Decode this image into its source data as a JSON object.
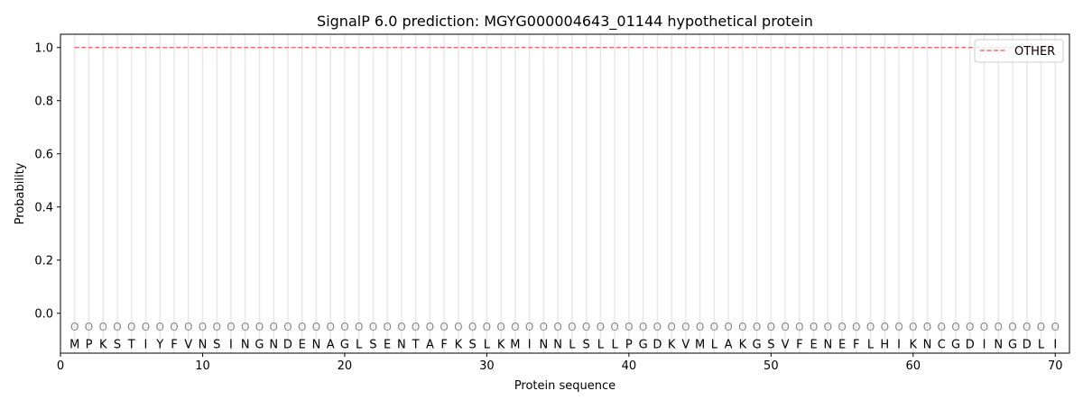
{
  "chart_data": {
    "type": "line",
    "title": "SignalP 6.0 prediction: MGYG000004643_01144 hypothetical protein",
    "xlabel": "Protein sequence",
    "ylabel": "Probability",
    "xlim": [
      0,
      71
    ],
    "ylim": [
      -0.15,
      1.05
    ],
    "xticks": [
      0,
      10,
      20,
      30,
      40,
      50,
      60,
      70
    ],
    "yticks": [
      0.0,
      0.2,
      0.4,
      0.6,
      0.8,
      1.0
    ],
    "ytick_labels": [
      "0.0",
      "0.2",
      "0.4",
      "0.6",
      "0.8",
      "1.0"
    ],
    "grid": "vertical lines at each residue",
    "legend_position": "top-right",
    "sequence": [
      "M",
      "P",
      "K",
      "S",
      "T",
      "I",
      "Y",
      "F",
      "V",
      "N",
      "S",
      "I",
      "N",
      "G",
      "N",
      "D",
      "E",
      "N",
      "A",
      "G",
      "L",
      "S",
      "E",
      "N",
      "T",
      "A",
      "F",
      "K",
      "S",
      "L",
      "K",
      "M",
      "I",
      "N",
      "N",
      "L",
      "S",
      "L",
      "L",
      "P",
      "G",
      "D",
      "K",
      "V",
      "M",
      "L",
      "A",
      "K",
      "G",
      "S",
      "V",
      "F",
      "E",
      "N",
      "E",
      "F",
      "L",
      "H",
      "I",
      "K",
      "N",
      "C",
      "G",
      "D",
      "I",
      "N",
      "G",
      "D",
      "L",
      "I"
    ],
    "predicted_label": "O",
    "series": [
      {
        "name": "OTHER",
        "color": "#f07070",
        "style": "dashed",
        "x_range": [
          1,
          70
        ],
        "value": 1.0
      }
    ]
  }
}
